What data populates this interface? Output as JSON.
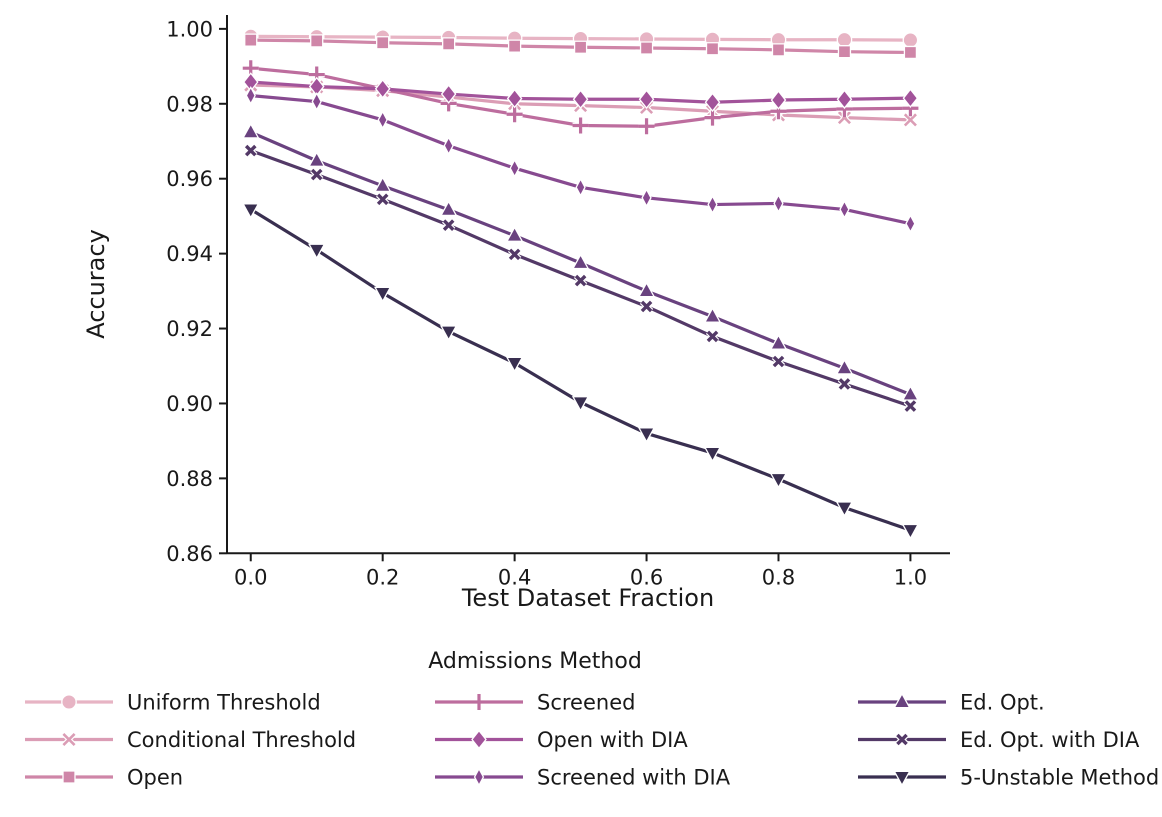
{
  "chart_data": {
    "type": "line",
    "title": "",
    "xlabel": "Test Dataset Fraction",
    "ylabel": "Accuracy",
    "legend_title": "Admissions Method",
    "legend_position": "bottom",
    "legend_columns": 3,
    "grid": false,
    "xlim": [
      -0.036,
      1.06
    ],
    "ylim": [
      0.86,
      1.0037
    ],
    "xticks": [
      0.0,
      0.2,
      0.4,
      0.6,
      0.8,
      1.0
    ],
    "xtick_labels": [
      "0.0",
      "0.2",
      "0.4",
      "0.6",
      "0.8",
      "1.0"
    ],
    "yticks": [
      1.0,
      0.98,
      0.96,
      0.94,
      0.92,
      0.9,
      0.88,
      0.86
    ],
    "ytick_labels": [
      "1.00",
      "0.98",
      "0.96",
      "0.94",
      "0.92",
      "0.90",
      "0.88",
      "0.86"
    ],
    "x": [
      0.0,
      0.1,
      0.2,
      0.3,
      0.4,
      0.5,
      0.6,
      0.7,
      0.8,
      0.9,
      1.0
    ],
    "series": [
      {
        "name": "Uniform Threshold",
        "marker": "circle",
        "color": "#e7b4c4",
        "values": [
          0.998,
          0.9979,
          0.9978,
          0.9977,
          0.9975,
          0.9974,
          0.9973,
          0.9972,
          0.9971,
          0.9971,
          0.997
        ]
      },
      {
        "name": "Conditional Threshold",
        "marker": "x",
        "color": "#db9db5",
        "values": [
          0.985,
          0.9845,
          0.9835,
          0.9818,
          0.98,
          0.9795,
          0.979,
          0.978,
          0.977,
          0.9763,
          0.9757
        ]
      },
      {
        "name": "Open",
        "marker": "square",
        "color": "#cf86a8",
        "values": [
          0.997,
          0.9968,
          0.9963,
          0.996,
          0.9954,
          0.9951,
          0.9949,
          0.9947,
          0.9944,
          0.9939,
          0.9937
        ]
      },
      {
        "name": "Screened",
        "marker": "plus",
        "color": "#bd6d9e",
        "values": [
          0.9895,
          0.9878,
          0.984,
          0.9801,
          0.9772,
          0.9742,
          0.974,
          0.9763,
          0.978,
          0.9786,
          0.9788
        ]
      },
      {
        "name": "Open with DIA",
        "marker": "diamond",
        "color": "#a2539a",
        "values": [
          0.9858,
          0.9846,
          0.984,
          0.9826,
          0.9814,
          0.9812,
          0.9812,
          0.9804,
          0.981,
          0.9812,
          0.9815
        ]
      },
      {
        "name": "Screened with DIA",
        "marker": "thin-diamond",
        "color": "#874a90",
        "values": [
          0.9822,
          0.9806,
          0.9757,
          0.9688,
          0.9628,
          0.9577,
          0.9549,
          0.9531,
          0.9534,
          0.9518,
          0.948
        ]
      },
      {
        "name": "Ed. Opt.",
        "marker": "triangle-up",
        "color": "#69427f",
        "values": [
          0.9724,
          0.9648,
          0.9581,
          0.9517,
          0.9448,
          0.9375,
          0.93,
          0.9232,
          0.916,
          0.9094,
          0.9024
        ]
      },
      {
        "name": "Ed. Opt. with DIA",
        "marker": "x-bold",
        "color": "#533967",
        "values": [
          0.9675,
          0.9611,
          0.9545,
          0.9476,
          0.9398,
          0.9328,
          0.9259,
          0.9179,
          0.9112,
          0.9052,
          0.8993
        ]
      },
      {
        "name": "5-Unstable Method",
        "marker": "triangle-down",
        "color": "#392f50",
        "values": [
          0.9518,
          0.941,
          0.9295,
          0.9192,
          0.9108,
          0.9003,
          0.892,
          0.8868,
          0.8798,
          0.8722,
          0.8662
        ]
      }
    ],
    "axis_color": "#191919"
  }
}
